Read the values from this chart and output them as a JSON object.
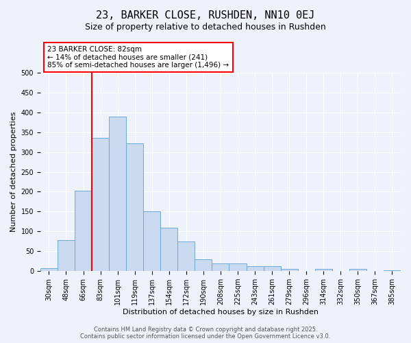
{
  "title": "23, BARKER CLOSE, RUSHDEN, NN10 0EJ",
  "subtitle": "Size of property relative to detached houses in Rushden",
  "xlabel": "Distribution of detached houses by size in Rushden",
  "ylabel": "Number of detached properties",
  "bar_labels": [
    "30sqm",
    "48sqm",
    "66sqm",
    "83sqm",
    "101sqm",
    "119sqm",
    "137sqm",
    "154sqm",
    "172sqm",
    "190sqm",
    "208sqm",
    "225sqm",
    "243sqm",
    "261sqm",
    "279sqm",
    "296sqm",
    "314sqm",
    "332sqm",
    "350sqm",
    "367sqm",
    "385sqm"
  ],
  "bar_values": [
    8,
    78,
    203,
    335,
    390,
    322,
    150,
    110,
    75,
    30,
    20,
    20,
    12,
    13,
    5,
    0,
    5,
    0,
    5,
    0,
    2
  ],
  "bar_color": "#c8d9f0",
  "bar_edge_color": "#6fa8d4",
  "vline_index": 3,
  "vline_color": "red",
  "annotation_title": "23 BARKER CLOSE: 82sqm",
  "annotation_line1": "← 14% of detached houses are smaller (241)",
  "annotation_line2": "85% of semi-detached houses are larger (1,496) →",
  "annotation_box_color": "white",
  "annotation_box_edge": "red",
  "ylim": [
    0,
    500
  ],
  "yticks": [
    0,
    50,
    100,
    150,
    200,
    250,
    300,
    350,
    400,
    450,
    500
  ],
  "bg_color": "#eef2fb",
  "grid_color": "#ffffff",
  "footer1": "Contains HM Land Registry data © Crown copyright and database right 2025.",
  "footer2": "Contains public sector information licensed under the Open Government Licence v3.0.",
  "title_fontsize": 11,
  "subtitle_fontsize": 9,
  "xlabel_fontsize": 8,
  "ylabel_fontsize": 8,
  "tick_fontsize": 7,
  "annotation_fontsize": 7.5
}
